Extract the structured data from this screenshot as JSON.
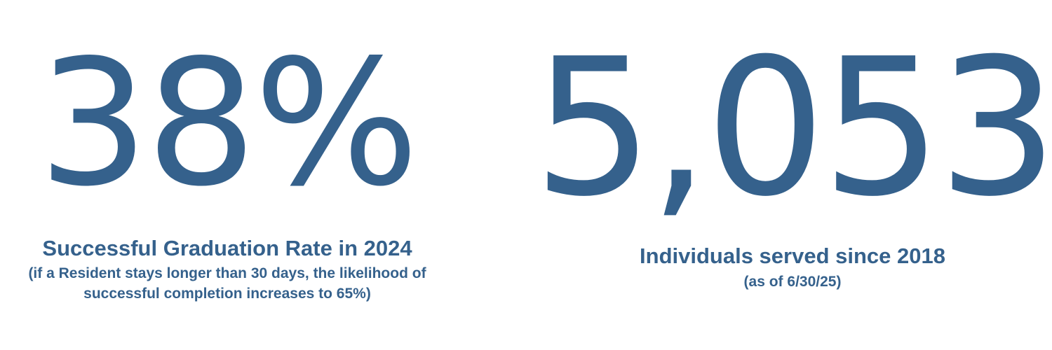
{
  "stats": [
    {
      "value": "38%",
      "caption": "Successful Graduation Rate in 2024",
      "note_line1": "(if a Resident stays longer than 30 days, the likelihood of",
      "note_line2": "successful completion increases to 65%)"
    },
    {
      "value": "5,053",
      "caption": "Individuals served since 2018",
      "note_line1": "(as of 6/30/25)"
    }
  ],
  "colors": {
    "text": "#35618c",
    "background": "#ffffff"
  }
}
